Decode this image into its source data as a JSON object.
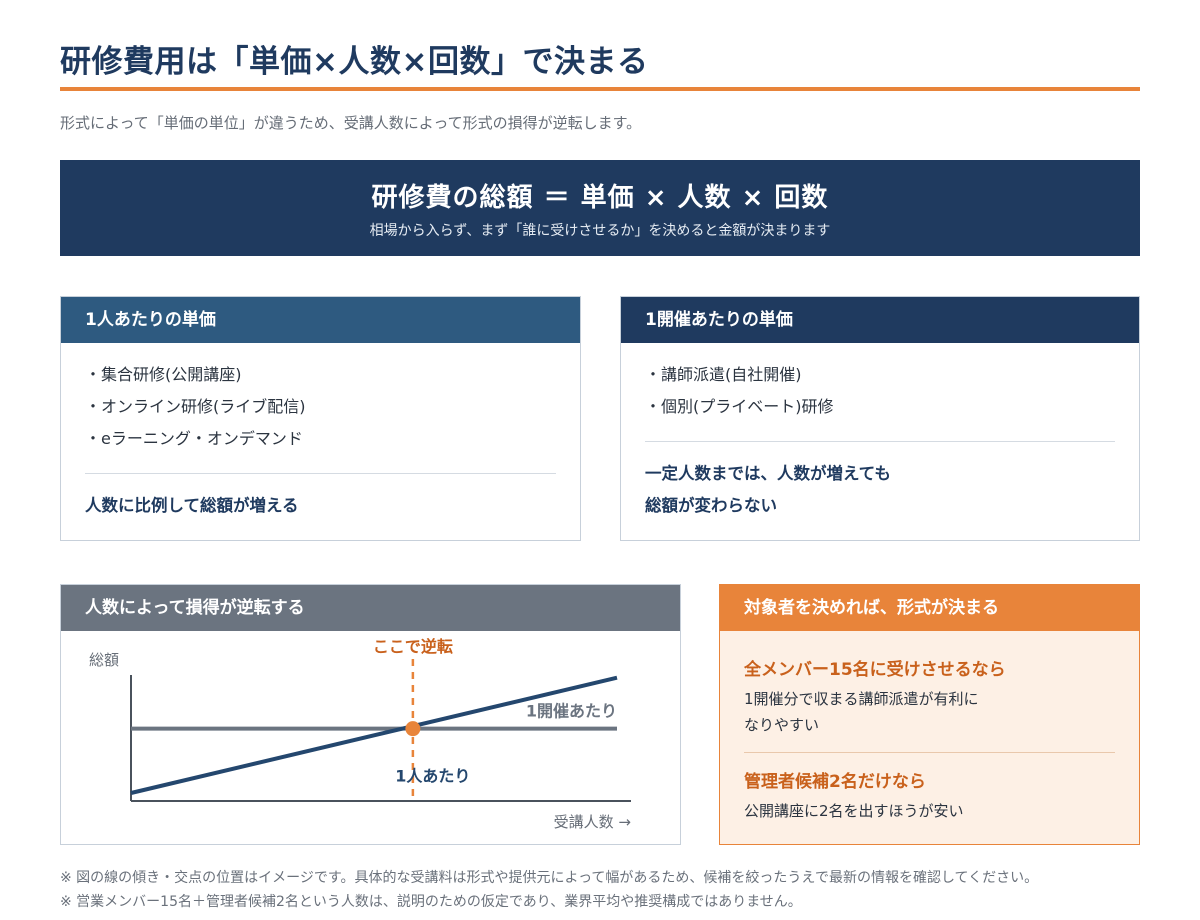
{
  "title": "研修費用は「単価×人数×回数」で決まる",
  "subtitle": "形式によって「単価の単位」が違うため、受講人数によって形式の損得が逆転します。",
  "formula": {
    "main": "研修費の総額 ＝ 単価 × 人数 × 回数",
    "sub": "相場から入らず、まず「誰に受けさせるか」を決めると金額が決まります"
  },
  "per_person": {
    "header": "1人あたりの単価",
    "items": [
      "・集合研修(公開講座)",
      "・オンライン研修(ライブ配信)",
      "・eラーニング・オンデマンド"
    ],
    "note": "人数に比例して総額が増える"
  },
  "per_session": {
    "header": "1開催あたりの単価",
    "items": [
      "・講師派遣(自社開催)",
      "・個別(プライベート)研修"
    ],
    "note_lines": [
      "一定人数までは、人数が増えても",
      "総額が変わらない"
    ]
  },
  "chart": {
    "header": "人数によって損得が逆転する",
    "ylabel": "総額",
    "xlabel": "受講人数 →",
    "crossover_label": "ここで逆転",
    "colors": {
      "per_person": "#24476e",
      "per_session": "#6b7480",
      "crossover": "#e8843a"
    }
  },
  "chart_data": {
    "type": "line",
    "xlabel": "受講人数 →",
    "ylabel": "総額",
    "grid": false,
    "note": "",
    "series": [
      {
        "name": "1人あたり",
        "x": [
          0,
          1
        ],
        "y": [
          0,
          1.075
        ]
      },
      {
        "name": "1開催あたり",
        "x": [
          0,
          1
        ],
        "y": [
          0.6,
          0.6
        ]
      }
    ],
    "crossover": {
      "x": 0.58,
      "y": 0.6,
      "label": "ここで逆転"
    }
  },
  "advice": {
    "header": "対象者を決めれば、形式が決まる",
    "case1_title": "全メンバー15名に受けさせるなら",
    "case1_lines": [
      "1開催分で収まる講師派遣が有利に",
      "なりやすい"
    ],
    "case2_title": "管理者候補2名だけなら",
    "case2_text": "公開講座に2名を出すほうが安い"
  },
  "footnotes": [
    "※ 図の線の傾き・交点の位置はイメージです。具体的な受講料は形式や提供元によって幅があるため、候補を絞ったうえで最新の情報を確認してください。",
    "※ 営業メンバー15名＋管理者候補2名という人数は、説明のための仮定であり、業界平均や推奨構成ではありません。"
  ]
}
